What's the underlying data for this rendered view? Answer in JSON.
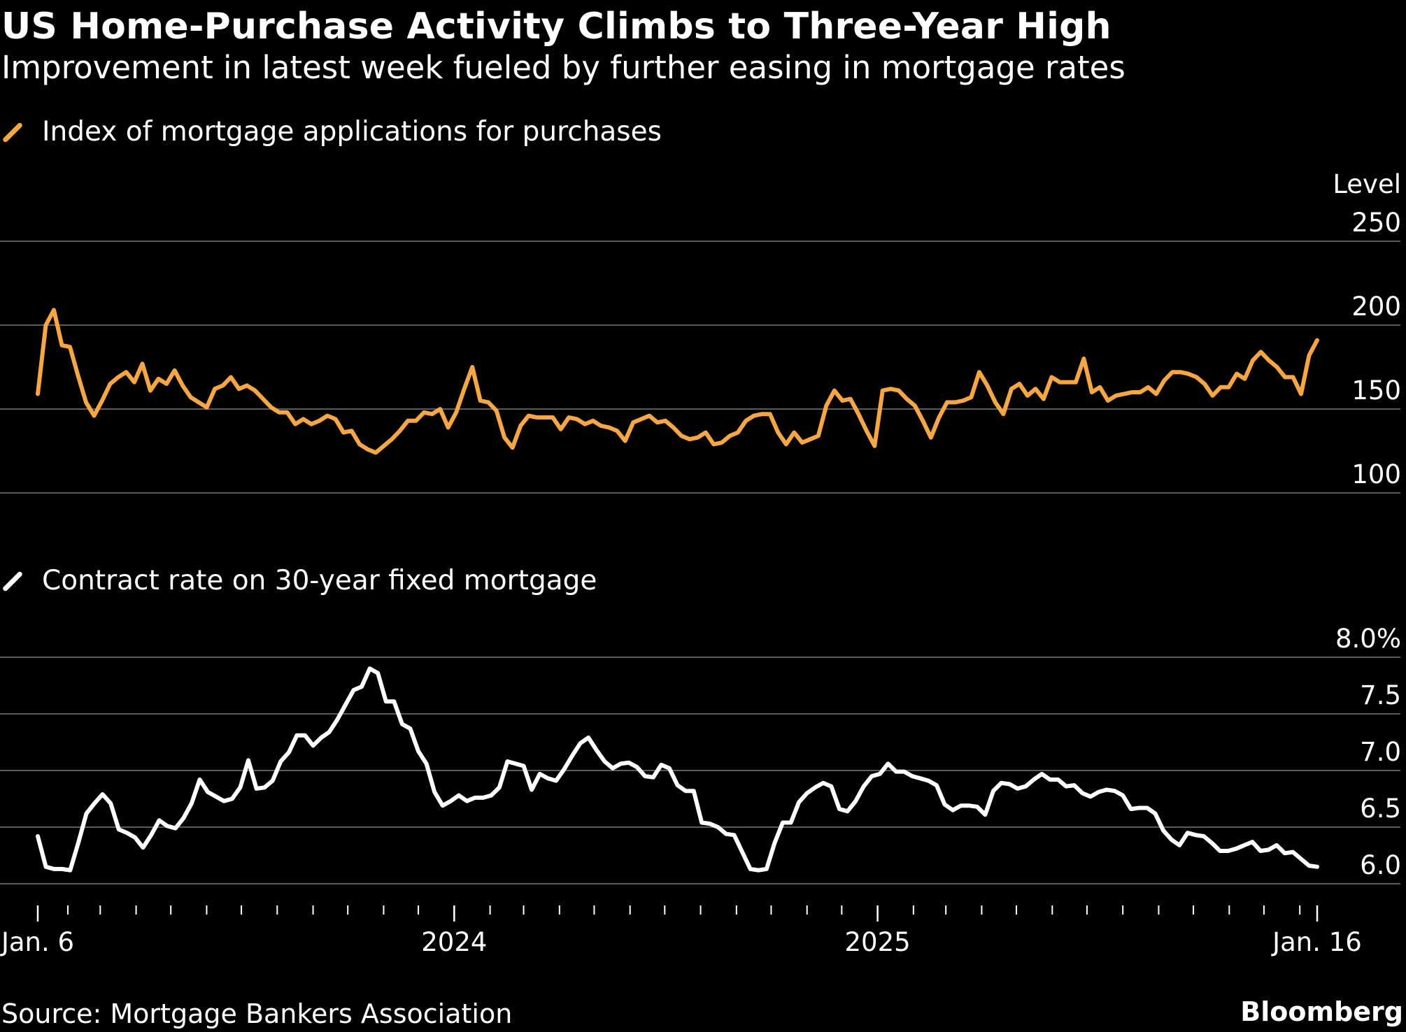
{
  "header": {
    "title": "US Home-Purchase Activity Climbs to Three-Year High",
    "subtitle": "Improvement in latest week fueled by further easing in mortgage rates"
  },
  "footer": {
    "source": "Source: Mortgage Bankers Association",
    "brand": "Bloomberg"
  },
  "colors": {
    "purchase_index": "#f7a642",
    "contract_rate": "#ffffff",
    "gridline": "#5a5a5a"
  },
  "x_axis": {
    "labels": [
      "Jan. 6",
      "2024",
      "2025",
      "Jan. 16"
    ],
    "start": "2023-01-06",
    "end": "2026-01-16"
  },
  "chart_data": [
    {
      "type": "line",
      "legend": "Index of mortgage applications for purchases",
      "unit_label": "Level",
      "ylim": [
        100,
        250
      ],
      "y_ticks": [
        "250",
        "200",
        "150",
        "100"
      ],
      "grid": true,
      "series": [
        {
          "name": "Index of mortgage applications for purchases",
          "values": [
            159,
            200,
            209,
            188,
            187,
            170,
            154,
            146,
            155,
            165,
            169,
            172,
            166,
            177,
            161,
            168,
            165,
            173,
            164,
            157,
            154,
            151,
            162,
            164,
            169,
            162,
            164,
            161,
            156,
            151,
            148,
            148,
            141,
            144,
            141,
            143,
            146,
            144,
            136,
            137,
            129,
            126,
            124,
            128,
            132,
            137,
            143,
            143,
            148,
            147,
            150,
            139,
            148,
            162,
            175,
            155,
            154,
            149,
            133,
            127,
            140,
            146,
            145,
            145,
            145,
            138,
            145,
            144,
            141,
            143,
            140,
            139,
            137,
            131,
            142,
            144,
            146,
            142,
            143,
            139,
            134,
            132,
            133,
            136,
            129,
            130,
            134,
            136,
            143,
            146,
            147,
            147,
            136,
            129,
            136,
            130,
            132,
            134,
            152,
            161,
            155,
            156,
            147,
            137,
            128,
            161,
            162,
            161,
            156,
            152,
            143,
            133,
            145,
            154,
            154,
            155,
            157,
            172,
            164,
            154,
            147,
            162,
            165,
            158,
            162,
            156,
            169,
            166,
            166,
            166,
            180,
            160,
            163,
            155,
            158,
            159,
            160,
            160,
            163,
            159,
            167,
            172,
            172,
            171,
            169,
            165,
            158,
            163,
            163,
            171,
            168,
            179,
            184,
            179,
            175,
            169,
            169,
            159,
            182,
            191
          ]
        }
      ]
    },
    {
      "type": "line",
      "legend": "Contract rate on 30-year fixed mortgage",
      "unit_label": "",
      "ylim": [
        6.0,
        8.0
      ],
      "y_ticks": [
        "8.0%",
        "7.5",
        "7.0",
        "6.5",
        "6.0"
      ],
      "grid": true,
      "series": [
        {
          "name": "Contract rate on 30-year fixed mortgage",
          "values": [
            6.42,
            6.15,
            6.13,
            6.13,
            6.12,
            6.36,
            6.62,
            6.71,
            6.79,
            6.71,
            6.48,
            6.45,
            6.41,
            6.32,
            6.43,
            6.56,
            6.51,
            6.49,
            6.58,
            6.71,
            6.92,
            6.81,
            6.77,
            6.73,
            6.75,
            6.85,
            7.09,
            6.84,
            6.85,
            6.91,
            7.08,
            7.16,
            7.31,
            7.31,
            7.22,
            7.29,
            7.34,
            7.45,
            7.58,
            7.71,
            7.74,
            7.9,
            7.86,
            7.61,
            7.61,
            7.41,
            7.37,
            7.17,
            7.06,
            6.81,
            6.69,
            6.73,
            6.78,
            6.73,
            6.76,
            6.76,
            6.78,
            6.85,
            7.08,
            7.06,
            7.04,
            6.83,
            6.97,
            6.93,
            6.91,
            7.01,
            7.13,
            7.24,
            7.29,
            7.18,
            7.08,
            7.02,
            7.06,
            7.07,
            7.03,
            6.95,
            6.94,
            7.05,
            7.02,
            6.87,
            6.82,
            6.82,
            6.54,
            6.53,
            6.5,
            6.44,
            6.43,
            6.28,
            6.13,
            6.12,
            6.13,
            6.36,
            6.54,
            6.54,
            6.72,
            6.8,
            6.85,
            6.89,
            6.86,
            6.66,
            6.64,
            6.73,
            6.86,
            6.95,
            6.97,
            7.06,
            6.99,
            6.99,
            6.95,
            6.93,
            6.91,
            6.87,
            6.7,
            6.65,
            6.69,
            6.69,
            6.68,
            6.61,
            6.82,
            6.89,
            6.88,
            6.84,
            6.86,
            6.92,
            6.97,
            6.92,
            6.92,
            6.86,
            6.87,
            6.8,
            6.77,
            6.81,
            6.83,
            6.82,
            6.78,
            6.66,
            6.67,
            6.67,
            6.62,
            6.47,
            6.39,
            6.34,
            6.45,
            6.43,
            6.42,
            6.36,
            6.29,
            6.29,
            6.31,
            6.34,
            6.37,
            6.29,
            6.3,
            6.34,
            6.27,
            6.28,
            6.22,
            6.16,
            6.15
          ]
        }
      ]
    }
  ]
}
